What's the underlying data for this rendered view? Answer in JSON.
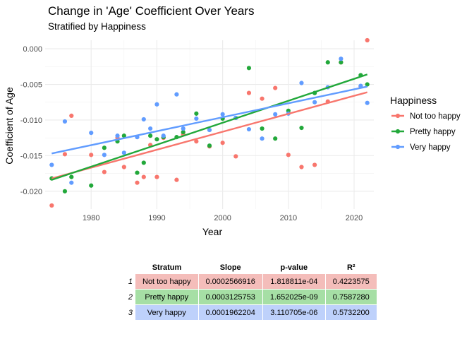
{
  "header": {
    "title": "Change in 'Age' Coefficient Over Years",
    "subtitle": "Stratified by Happiness"
  },
  "chart_data": {
    "type": "scatter",
    "title": "Change in 'Age' Coefficient Over Years",
    "subtitle": "Stratified by Happiness",
    "xlabel": "Year",
    "ylabel": "Coefficient of Age",
    "xlim": [
      1973,
      2023
    ],
    "ylim": [
      -0.0225,
      0.0012
    ],
    "x_ticks": [
      1980,
      1990,
      2000,
      2010,
      2020
    ],
    "y_ticks": [
      0.0,
      -0.005,
      -0.01,
      -0.015,
      -0.02
    ],
    "y_tick_labels": [
      "0.000",
      "-0.005",
      "-0.010",
      "-0.015",
      "-0.020"
    ],
    "grid": true,
    "legend": {
      "title": "Happiness",
      "position": "right"
    },
    "trend_lines": "linear fit per series",
    "series": [
      {
        "name": "Not too happy",
        "color": "#F8766D",
        "points": [
          [
            1974,
            -0.022
          ],
          [
            1976,
            -0.0148
          ],
          [
            1977,
            -0.0094
          ],
          [
            1980,
            -0.0149
          ],
          [
            1982,
            -0.0173
          ],
          [
            1984,
            -0.0125
          ],
          [
            1985,
            -0.0166
          ],
          [
            1987,
            -0.0188
          ],
          [
            1988,
            -0.018
          ],
          [
            1989,
            -0.0135
          ],
          [
            1990,
            -0.018
          ],
          [
            1991,
            -0.0125
          ],
          [
            1993,
            -0.0184
          ],
          [
            1994,
            -0.012
          ],
          [
            1996,
            -0.013
          ],
          [
            1998,
            -0.0137
          ],
          [
            2000,
            -0.0132
          ],
          [
            2002,
            -0.0151
          ],
          [
            2004,
            -0.0062
          ],
          [
            2006,
            -0.007
          ],
          [
            2008,
            -0.0055
          ],
          [
            2010,
            -0.0149
          ],
          [
            2012,
            -0.0166
          ],
          [
            2014,
            -0.0163
          ],
          [
            2016,
            -0.0074
          ],
          [
            2018,
            -0.0019
          ],
          [
            2021,
            -0.0053
          ],
          [
            2022,
            0.0012
          ]
        ],
        "trend": [
          [
            1974,
            -0.0182
          ],
          [
            2022,
            -0.0061
          ]
        ]
      },
      {
        "name": "Pretty happy",
        "color": "#22A83A",
        "points": [
          [
            1974,
            -0.0182
          ],
          [
            1976,
            -0.02
          ],
          [
            1977,
            -0.018
          ],
          [
            1980,
            -0.0192
          ],
          [
            1982,
            -0.0139
          ],
          [
            1984,
            -0.013
          ],
          [
            1985,
            -0.0122
          ],
          [
            1987,
            -0.0174
          ],
          [
            1988,
            -0.016
          ],
          [
            1989,
            -0.0122
          ],
          [
            1990,
            -0.0127
          ],
          [
            1991,
            -0.0124
          ],
          [
            1993,
            -0.0124
          ],
          [
            1994,
            -0.0117
          ],
          [
            1996,
            -0.0091
          ],
          [
            1998,
            -0.0136
          ],
          [
            2000,
            -0.0098
          ],
          [
            2002,
            -0.0097
          ],
          [
            2004,
            -0.0027
          ],
          [
            2006,
            -0.0112
          ],
          [
            2008,
            -0.0126
          ],
          [
            2010,
            -0.0087
          ],
          [
            2012,
            -0.0111
          ],
          [
            2014,
            -0.0062
          ],
          [
            2016,
            -0.0019
          ],
          [
            2018,
            -0.0019
          ],
          [
            2021,
            -0.0037
          ],
          [
            2022,
            -0.005
          ]
        ],
        "trend": [
          [
            1974,
            -0.0184
          ],
          [
            2022,
            -0.0036
          ]
        ]
      },
      {
        "name": "Very happy",
        "color": "#619CFF",
        "points": [
          [
            1974,
            -0.0163
          ],
          [
            1976,
            -0.0102
          ],
          [
            1977,
            -0.0188
          ],
          [
            1980,
            -0.0118
          ],
          [
            1982,
            -0.0149
          ],
          [
            1984,
            -0.0122
          ],
          [
            1985,
            -0.0146
          ],
          [
            1987,
            -0.0124
          ],
          [
            1988,
            -0.0099
          ],
          [
            1989,
            -0.0112
          ],
          [
            1990,
            -0.0078
          ],
          [
            1991,
            -0.0122
          ],
          [
            1993,
            -0.0064
          ],
          [
            1994,
            -0.0112
          ],
          [
            1996,
            -0.0098
          ],
          [
            1998,
            -0.0114
          ],
          [
            2000,
            -0.0092
          ],
          [
            2002,
            -0.0097
          ],
          [
            2004,
            -0.0113
          ],
          [
            2006,
            -0.0126
          ],
          [
            2008,
            -0.0092
          ],
          [
            2010,
            -0.0091
          ],
          [
            2012,
            -0.0048
          ],
          [
            2014,
            -0.0075
          ],
          [
            2016,
            -0.0054
          ],
          [
            2018,
            -0.0014
          ],
          [
            2021,
            -0.0052
          ],
          [
            2022,
            -0.0076
          ]
        ],
        "trend": [
          [
            1974,
            -0.0147
          ],
          [
            2022,
            -0.0053
          ]
        ]
      }
    ]
  },
  "table": {
    "columns": [
      "Stratum",
      "Slope",
      "p-value",
      "R²"
    ],
    "rows": [
      {
        "index": "1",
        "stratum": "Not too happy",
        "slope": "0.0002566916",
        "p_value": "1.818811e-04",
        "r2": "0.4223575",
        "color": "#F4BDBA"
      },
      {
        "index": "2",
        "stratum": "Pretty happy",
        "slope": "0.0003125753",
        "p_value": "1.652025e-09",
        "r2": "0.7587280",
        "color": "#A6DFA5"
      },
      {
        "index": "3",
        "stratum": "Very happy",
        "slope": "0.0001962204",
        "p_value": "3.110705e-06",
        "r2": "0.5732200",
        "color": "#BED1FB"
      }
    ]
  }
}
